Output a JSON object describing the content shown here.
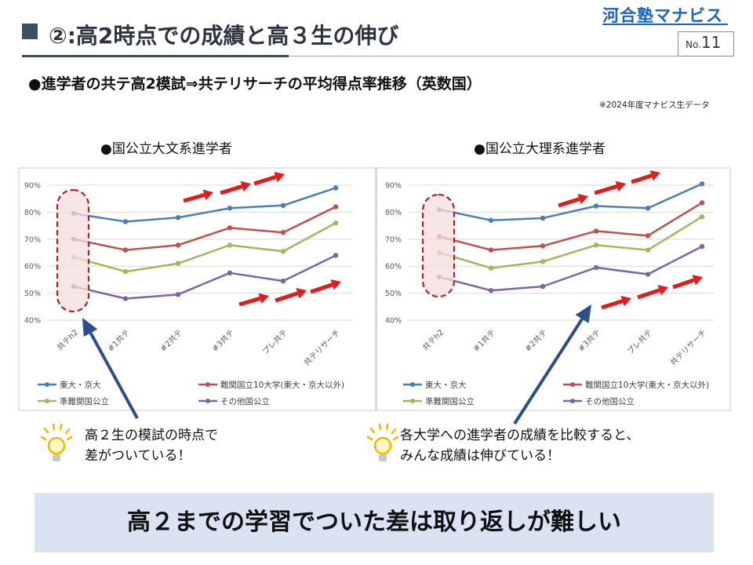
{
  "header": {
    "title": "②:高2時点での成績と高３生の伸び",
    "logo": "河合塾マナビス",
    "page_prefix": "No.",
    "page_number": "11"
  },
  "subtitle": "●進学者の共テ高2模試⇒共テリサーチの平均得点率推移（英数国）",
  "note": "※2024年度マナビス生データ",
  "colors": {
    "series": [
      "#4a7ebb",
      "#c0504d",
      "#9bbb59",
      "#8064a2"
    ],
    "arrow_red": "#e31b1b",
    "arrow_blue": "#2e4d8c",
    "highlight_dashed": "#b22222",
    "conclusion_bg": "#dae3f1"
  },
  "chart_data": [
    {
      "type": "line",
      "title": "●国公立大文系進学者",
      "categories": [
        "共テh2",
        "#1共テ",
        "#2共テ",
        "#3共テ",
        "プレ共テ",
        "共テリサーチ"
      ],
      "ylim": [
        40,
        90
      ],
      "yticks": [
        "40%",
        "50%",
        "60%",
        "70%",
        "80%",
        "90%"
      ],
      "grid": true,
      "legend": "bottom",
      "series": [
        {
          "name": "東大・京大",
          "values": [
            79.5,
            76.5,
            78.0,
            81.5,
            82.5,
            89.0
          ]
        },
        {
          "name": "難関国立10大学(東大・京大以外)",
          "values": [
            70.0,
            66.0,
            67.8,
            74.2,
            72.5,
            82.0
          ]
        },
        {
          "name": "準難関国公立",
          "values": [
            63.3,
            58.0,
            61.0,
            67.8,
            65.5,
            76.0
          ]
        },
        {
          "name": "その他国公立",
          "values": [
            52.5,
            48.0,
            49.5,
            57.5,
            54.5,
            64.0
          ]
        }
      ]
    },
    {
      "type": "line",
      "title": "●国公立大理系進学者",
      "categories": [
        "共テh2",
        "#1共テ",
        "#2共テ",
        "#3共テ",
        "プレ共テ",
        "共テリサーチ"
      ],
      "ylim": [
        40,
        90
      ],
      "yticks": [
        "40%",
        "50%",
        "60%",
        "70%",
        "80%",
        "90%"
      ],
      "grid": true,
      "legend": "bottom",
      "series": [
        {
          "name": "東大・京大",
          "values": [
            81.0,
            77.0,
            77.8,
            82.3,
            81.5,
            90.5
          ]
        },
        {
          "name": "難関国立10大学(東大・京大以外)",
          "values": [
            71.0,
            66.0,
            67.5,
            73.0,
            71.3,
            83.5
          ]
        },
        {
          "name": "準難関国公立",
          "values": [
            65.0,
            59.3,
            61.7,
            67.8,
            66.0,
            78.3
          ]
        },
        {
          "name": "その他国公立",
          "values": [
            56.0,
            51.0,
            52.5,
            59.5,
            57.0,
            67.3
          ]
        }
      ]
    }
  ],
  "tips": [
    {
      "icon": "lightbulb-icon",
      "line1": "高２生の模試の時点で",
      "line2": "差がついている！"
    },
    {
      "icon": "lightbulb-icon",
      "line1": "各大学への進学者の成績を比較すると、",
      "line2": "みんな成績は伸びている！"
    }
  ],
  "conclusion": "高２までの学習でついた差は取り返しが難しい"
}
